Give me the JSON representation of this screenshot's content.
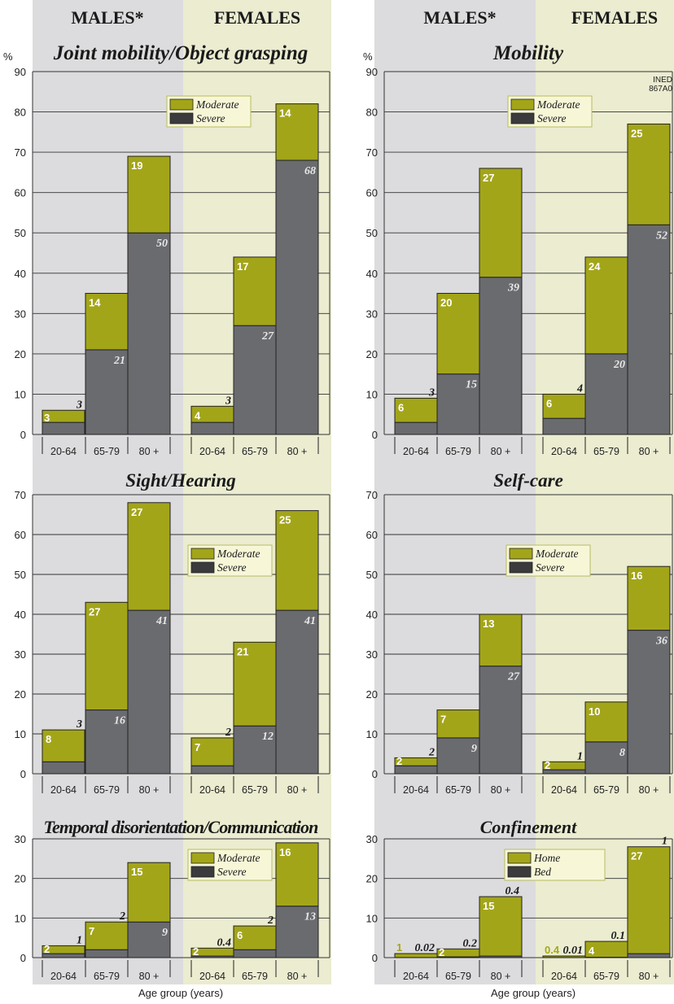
{
  "headers": {
    "males": "MALES*",
    "females": "FEMALES"
  },
  "unit_label": "%",
  "source_label": [
    "INED",
    "867A0"
  ],
  "xlabel": "Age group (years)",
  "colors": {
    "moderate": "#a3a519",
    "severe": "#6a6b6f",
    "male_bg": "#dcdcde",
    "female_bg": "#ebecd0"
  },
  "chart_data": [
    {
      "type": "bar",
      "title": "Joint mobility/Object grasping",
      "categories": [
        "20-64",
        "65-79",
        "80 +"
      ],
      "groups": [
        "MALES*",
        "FEMALES"
      ],
      "ylim": [
        0,
        90
      ],
      "yticks": [
        0,
        10,
        20,
        30,
        40,
        50,
        60,
        70,
        80,
        90
      ],
      "legend": [
        "Moderate",
        "Severe"
      ],
      "series": [
        {
          "name": "Severe",
          "males": [
            3,
            21,
            50
          ],
          "females": [
            3,
            27,
            68
          ]
        },
        {
          "name": "Moderate",
          "males": [
            3,
            14,
            19
          ],
          "females": [
            4,
            17,
            14
          ]
        }
      ]
    },
    {
      "type": "bar",
      "title": "Mobility",
      "categories": [
        "20-64",
        "65-79",
        "80 +"
      ],
      "groups": [
        "MALES*",
        "FEMALES"
      ],
      "ylim": [
        0,
        90
      ],
      "yticks": [
        0,
        10,
        20,
        30,
        40,
        50,
        60,
        70,
        80,
        90
      ],
      "legend": [
        "Moderate",
        "Severe"
      ],
      "series": [
        {
          "name": "Severe",
          "males": [
            3,
            15,
            39
          ],
          "females": [
            4,
            20,
            52
          ]
        },
        {
          "name": "Moderate",
          "males": [
            6,
            20,
            27
          ],
          "females": [
            6,
            24,
            25
          ]
        }
      ]
    },
    {
      "type": "bar",
      "title": "Sight/Hearing",
      "categories": [
        "20-64",
        "65-79",
        "80 +"
      ],
      "groups": [
        "MALES*",
        "FEMALES"
      ],
      "ylim": [
        0,
        70
      ],
      "yticks": [
        0,
        10,
        20,
        30,
        40,
        50,
        60,
        70
      ],
      "legend": [
        "Moderate",
        "Severe"
      ],
      "series": [
        {
          "name": "Severe",
          "males": [
            3,
            16,
            41
          ],
          "females": [
            2,
            12,
            41
          ]
        },
        {
          "name": "Moderate",
          "males": [
            8,
            27,
            27
          ],
          "females": [
            7,
            21,
            25
          ]
        }
      ]
    },
    {
      "type": "bar",
      "title": "Self-care",
      "categories": [
        "20-64",
        "65-79",
        "80 +"
      ],
      "groups": [
        "MALES*",
        "FEMALES"
      ],
      "ylim": [
        0,
        70
      ],
      "yticks": [
        0,
        10,
        20,
        30,
        40,
        50,
        60,
        70
      ],
      "legend": [
        "Moderate",
        "Severe"
      ],
      "series": [
        {
          "name": "Severe",
          "males": [
            2,
            9,
            27
          ],
          "females": [
            1,
            8,
            36
          ]
        },
        {
          "name": "Moderate",
          "males": [
            2,
            7,
            13
          ],
          "females": [
            2,
            10,
            16
          ]
        }
      ]
    },
    {
      "type": "bar",
      "title": "Temporal disorientation/Communication",
      "categories": [
        "20-64",
        "65-79",
        "80 +"
      ],
      "groups": [
        "MALES*",
        "FEMALES"
      ],
      "ylim": [
        0,
        30
      ],
      "yticks": [
        0,
        10,
        20,
        30
      ],
      "legend": [
        "Moderate",
        "Severe"
      ],
      "series": [
        {
          "name": "Severe",
          "males": [
            1,
            2,
            9
          ],
          "females": [
            0.4,
            2,
            13
          ]
        },
        {
          "name": "Moderate",
          "males": [
            2,
            7,
            15
          ],
          "females": [
            2,
            6,
            16
          ]
        }
      ]
    },
    {
      "type": "bar",
      "title": "Confinement",
      "categories": [
        "20-64",
        "65-79",
        "80 +"
      ],
      "groups": [
        "MALES*",
        "FEMALES"
      ],
      "ylim": [
        0,
        30
      ],
      "yticks": [
        0,
        10,
        20,
        30
      ],
      "legend": [
        "Home",
        "Bed"
      ],
      "series": [
        {
          "name": "Bed",
          "males": [
            0.02,
            0.2,
            0.4
          ],
          "females": [
            0.01,
            0.1,
            1
          ]
        },
        {
          "name": "Home",
          "males": [
            1,
            2,
            15
          ],
          "females": [
            0.4,
            4,
            27
          ]
        }
      ]
    }
  ]
}
